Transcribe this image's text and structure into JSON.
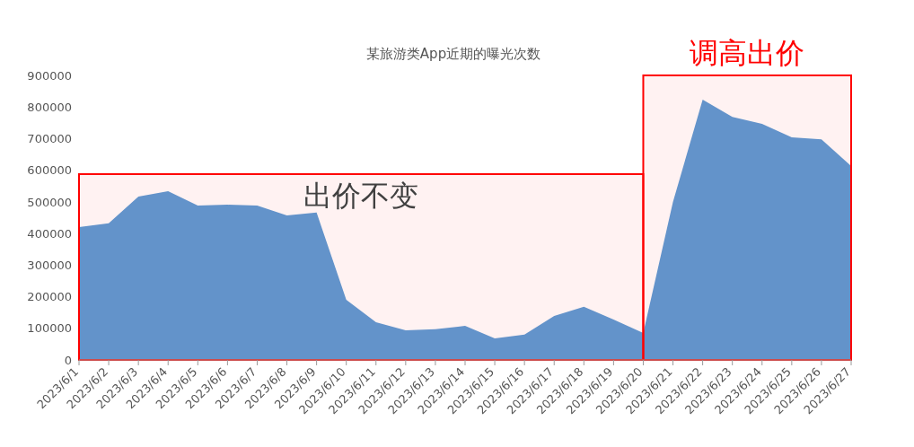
{
  "chart_data": {
    "type": "area",
    "title": "某旅游类App近期的曝光次数",
    "categories": [
      "2023/6/1",
      "2023/6/2",
      "2023/6/3",
      "2023/6/4",
      "2023/6/5",
      "2023/6/6",
      "2023/6/7",
      "2023/6/8",
      "2023/6/9",
      "2023/6/10",
      "2023/6/11",
      "2023/6/12",
      "2023/6/13",
      "2023/6/14",
      "2023/6/15",
      "2023/6/16",
      "2023/6/17",
      "2023/6/18",
      "2023/6/19",
      "2023/6/20",
      "2023/6/21",
      "2023/6/22",
      "2023/6/23",
      "2023/6/24",
      "2023/6/25",
      "2023/6/26",
      "2023/6/27"
    ],
    "values": [
      420000,
      432000,
      517000,
      534000,
      488000,
      491000,
      488000,
      457000,
      466000,
      190000,
      119000,
      94000,
      97000,
      108000,
      68000,
      80000,
      139000,
      168000,
      128000,
      85000,
      500000,
      823000,
      769000,
      747000,
      704000,
      698000,
      613000
    ],
    "color": "#5b9bd5",
    "ylim": [
      0,
      900000
    ],
    "yticks": [
      0,
      100000,
      200000,
      300000,
      400000,
      500000,
      600000,
      700000,
      800000,
      900000
    ],
    "bands": [
      {
        "axis": "x",
        "from": "2023/6/1",
        "to": "2023/6/20",
        "label": "出价不变",
        "color": "#ff0000"
      },
      {
        "axis": "x",
        "from": "2023/6/20",
        "to": "2023/6/27",
        "label": "调高出价",
        "color": "#ff0000"
      }
    ]
  }
}
